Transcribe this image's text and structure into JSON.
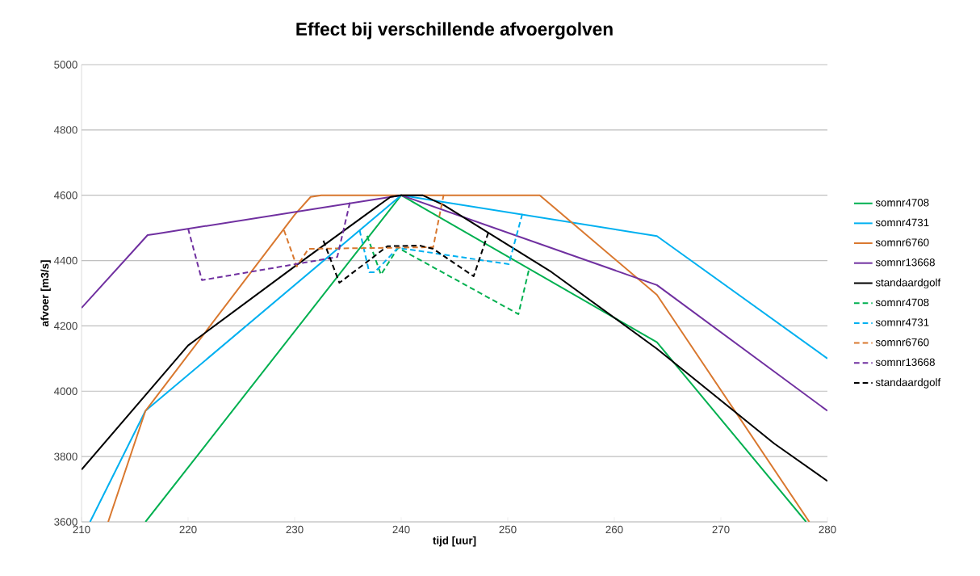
{
  "chart_data": {
    "type": "line",
    "title": "Effect bij verschillende afvoergolven",
    "xlabel": "tijd [uur]",
    "ylabel": "afvoer [m3/s]",
    "xlim": [
      210,
      280
    ],
    "xticks": [
      210,
      220,
      230,
      240,
      250,
      260,
      270,
      280
    ],
    "ylim": [
      3600,
      5000
    ],
    "yticks": [
      3600,
      3800,
      4000,
      4200,
      4400,
      4600,
      4800,
      5000
    ],
    "grid": "y",
    "legend": "right",
    "marker": "none",
    "series": [
      {
        "name": "somnr4708",
        "color": "#00b050",
        "line_style": "solid",
        "x": [
          216,
          240,
          264,
          278
        ],
        "values": [
          3600,
          4600,
          4150,
          3600
        ]
      },
      {
        "name": "somnr4731",
        "color": "#00b0f0",
        "line_style": "solid",
        "x": [
          210.8,
          216,
          240,
          264,
          280
        ],
        "values": [
          3600,
          3940,
          4600,
          4475,
          4100
        ]
      },
      {
        "name": "somnr6760",
        "color": "#d9782f",
        "line_style": "solid",
        "x": [
          212.5,
          216,
          230,
          231.5,
          232.5,
          253,
          264,
          278.3
        ],
        "values": [
          3600,
          3940,
          4540,
          4595,
          4600,
          4600,
          4295,
          3600
        ]
      },
      {
        "name": "somnr13668",
        "color": "#7030a0",
        "line_style": "solid",
        "x": [
          210,
          216.2,
          217,
          240,
          264,
          280
        ],
        "values": [
          4255,
          4478,
          4482,
          4600,
          4325,
          3940
        ]
      },
      {
        "name": "standaardgolf",
        "color": "#000000",
        "line_style": "solid",
        "x": [
          210,
          220,
          230,
          237.5,
          239,
          240,
          242,
          244,
          254.1,
          264,
          275,
          280
        ],
        "values": [
          3760,
          4140,
          4382,
          4560,
          4595,
          4600,
          4600,
          4570,
          4365,
          4130,
          3840,
          3725
        ]
      },
      {
        "name": "somnr4708",
        "color": "#00b050",
        "line_style": "dashed",
        "x": [
          236.8,
          238.1,
          239.7,
          251,
          252
        ],
        "values": [
          4476,
          4357,
          4439,
          4236,
          4374
        ]
      },
      {
        "name": "somnr4731",
        "color": "#00b0f0",
        "line_style": "dashed",
        "x": [
          236.1,
          237,
          237.5,
          239.7,
          250.1,
          251.4
        ],
        "values": [
          4493,
          4364,
          4364,
          4439,
          4389,
          4547
        ]
      },
      {
        "name": "somnr6760",
        "color": "#d9782f",
        "line_style": "dashed",
        "x": [
          229,
          230.2,
          231.3,
          243,
          244
        ],
        "values": [
          4493,
          4382,
          4436,
          4441,
          4604
        ]
      },
      {
        "name": "somnr13668",
        "color": "#7030a0",
        "line_style": "dashed",
        "x": [
          220,
          221.3,
          234,
          235.2
        ],
        "values": [
          4498,
          4340,
          4411,
          4580
        ]
      },
      {
        "name": "standaardgolf",
        "color": "#000000",
        "line_style": "dashed",
        "x": [
          232.7,
          234.2,
          237.2,
          238.7,
          241.7,
          243,
          246.8,
          248.2
        ],
        "values": [
          4461,
          4332,
          4406,
          4444,
          4446,
          4436,
          4352,
          4488
        ]
      }
    ]
  }
}
